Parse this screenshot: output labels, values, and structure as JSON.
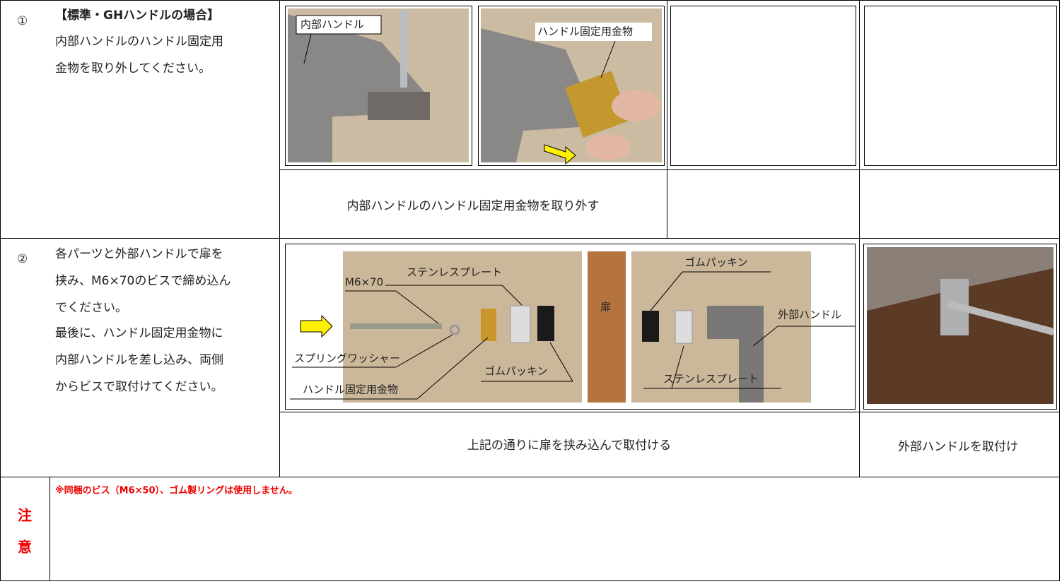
{
  "steps": [
    {
      "number": "①",
      "heading": "【標準・GHハンドルの場合】",
      "lines": [
        "内部ハンドルのハンドル固定用",
        "金物を取り外してください。"
      ]
    },
    {
      "number": "②",
      "lines": [
        "各パーツと外部ハンドルで扉を",
        "挟み、M6×70のビスで締め込ん",
        "でください。",
        "最後に、ハンドル固定用金物に",
        "内部ハンドルを差し込み、両側",
        "からビスで取付けてください。"
      ]
    }
  ],
  "figures": {
    "photo1": [
      "内部ハンドル"
    ],
    "photo2": [
      "ハンドル固定用金物"
    ],
    "parts": [
      "M6×70",
      "ステンレスプレート",
      "スプリングワッシャー",
      "ハンドル固定用金物",
      "ゴムパッキン",
      "扉",
      "ゴムパッキン",
      "外部ハンドル",
      "ステンレスプレート"
    ]
  },
  "captions": [
    "内部ハンドルのハンドル固定用金物を取り外す",
    "上記の通りに扉を挟み込んで取付ける",
    "外部ハンドルを取付け"
  ],
  "note": {
    "label": [
      "注",
      "意"
    ],
    "text": "※同梱のビス（M6×50）、ゴム製リングは使用しません。"
  }
}
